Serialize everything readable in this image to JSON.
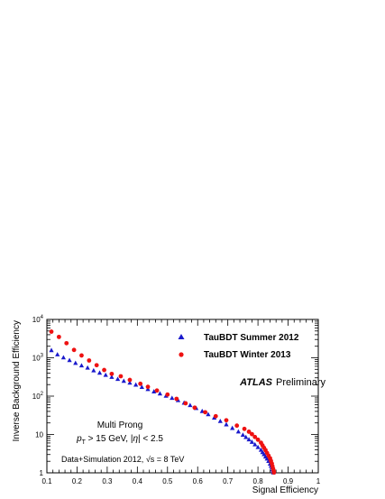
{
  "chart_data": {
    "type": "scatter",
    "xlabel": "Signal Efficiency",
    "ylabel": "Inverse Background Efficiency",
    "xlim": [
      0.1,
      1.0
    ],
    "ylim": [
      1,
      10000
    ],
    "yscale": "log",
    "grid": false,
    "legend_position": "top-right",
    "x_ticks": [
      {
        "v": 0.1,
        "label": "0.1"
      },
      {
        "v": 0.2,
        "label": "0.2"
      },
      {
        "v": 0.3,
        "label": "0.3"
      },
      {
        "v": 0.4,
        "label": "0.4"
      },
      {
        "v": 0.5,
        "label": "0.5"
      },
      {
        "v": 0.6,
        "label": "0.6"
      },
      {
        "v": 0.7,
        "label": "0.7"
      },
      {
        "v": 0.8,
        "label": "0.8"
      },
      {
        "v": 0.9,
        "label": "0.9"
      },
      {
        "v": 1.0,
        "label": "1"
      }
    ],
    "y_ticks": [
      {
        "v": 1,
        "base": "1",
        "exp": ""
      },
      {
        "v": 10,
        "base": "10",
        "exp": ""
      },
      {
        "v": 100,
        "base": "10",
        "exp": "2"
      },
      {
        "v": 1000,
        "base": "10",
        "exp": "3"
      },
      {
        "v": 10000,
        "base": "10",
        "exp": "4"
      }
    ],
    "series": [
      {
        "name": "TauBDT Summer 2012",
        "marker": "triangle",
        "color": "#1a1acc",
        "points": [
          [
            0.115,
            1550
          ],
          [
            0.135,
            1200
          ],
          [
            0.155,
            1000
          ],
          [
            0.175,
            850
          ],
          [
            0.195,
            720
          ],
          [
            0.215,
            620
          ],
          [
            0.235,
            540
          ],
          [
            0.255,
            460
          ],
          [
            0.275,
            400
          ],
          [
            0.295,
            350
          ],
          [
            0.315,
            310
          ],
          [
            0.335,
            275
          ],
          [
            0.355,
            245
          ],
          [
            0.375,
            220
          ],
          [
            0.395,
            195
          ],
          [
            0.415,
            170
          ],
          [
            0.435,
            150
          ],
          [
            0.455,
            130
          ],
          [
            0.475,
            115
          ],
          [
            0.495,
            100
          ],
          [
            0.515,
            88
          ],
          [
            0.535,
            77
          ],
          [
            0.555,
            66
          ],
          [
            0.575,
            57
          ],
          [
            0.595,
            48
          ],
          [
            0.615,
            40
          ],
          [
            0.635,
            33
          ],
          [
            0.655,
            27
          ],
          [
            0.675,
            22
          ],
          [
            0.695,
            18
          ],
          [
            0.715,
            14.5
          ],
          [
            0.735,
            11.7
          ],
          [
            0.75,
            9.6
          ],
          [
            0.76,
            8.4
          ],
          [
            0.77,
            7.3
          ],
          [
            0.78,
            6.3
          ],
          [
            0.79,
            5.4
          ],
          [
            0.8,
            4.6
          ],
          [
            0.81,
            3.9
          ],
          [
            0.815,
            3.4
          ],
          [
            0.82,
            3.0
          ],
          [
            0.825,
            2.6
          ],
          [
            0.83,
            2.3
          ],
          [
            0.835,
            2.0
          ],
          [
            0.84,
            1.7
          ],
          [
            0.843,
            1.5
          ],
          [
            0.846,
            1.35
          ],
          [
            0.848,
            1.2
          ],
          [
            0.85,
            1.1
          ],
          [
            0.851,
            1.0
          ]
        ]
      },
      {
        "name": "TauBDT Winter 2013",
        "marker": "circle",
        "color": "#ee1111",
        "points": [
          [
            0.115,
            4800
          ],
          [
            0.14,
            3500
          ],
          [
            0.165,
            2400
          ],
          [
            0.19,
            1600
          ],
          [
            0.215,
            1150
          ],
          [
            0.24,
            850
          ],
          [
            0.265,
            640
          ],
          [
            0.29,
            480
          ],
          [
            0.315,
            380
          ],
          [
            0.345,
            330
          ],
          [
            0.375,
            265
          ],
          [
            0.41,
            210
          ],
          [
            0.435,
            175
          ],
          [
            0.465,
            140
          ],
          [
            0.5,
            110
          ],
          [
            0.53,
            85
          ],
          [
            0.56,
            65
          ],
          [
            0.59,
            50
          ],
          [
            0.625,
            38
          ],
          [
            0.66,
            30
          ],
          [
            0.695,
            23.5
          ],
          [
            0.73,
            17
          ],
          [
            0.755,
            14
          ],
          [
            0.77,
            11.8
          ],
          [
            0.78,
            10.2
          ],
          [
            0.79,
            8.6
          ],
          [
            0.8,
            7.3
          ],
          [
            0.81,
            6.1
          ],
          [
            0.815,
            5.2
          ],
          [
            0.82,
            4.5
          ],
          [
            0.825,
            3.9
          ],
          [
            0.83,
            3.3
          ],
          [
            0.835,
            2.8
          ],
          [
            0.84,
            2.4
          ],
          [
            0.843,
            2.05
          ],
          [
            0.846,
            1.75
          ],
          [
            0.848,
            1.5
          ],
          [
            0.85,
            1.3
          ],
          [
            0.852,
            1.15
          ],
          [
            0.853,
            1.02
          ]
        ]
      }
    ],
    "annotations": {
      "atlas": "ATLAS",
      "preliminary": "Preliminary",
      "category": "Multi Prong",
      "cut_pt": "p",
      "cut_pt_sub": "T",
      "cut_rest": " > 15 GeV, |",
      "cut_eta": "η",
      "cut_end": "| < 2.5",
      "dataset": "Data+Simulation 2012, ",
      "energy_sqrt": "√",
      "energy": "s = 8 TeV"
    }
  }
}
